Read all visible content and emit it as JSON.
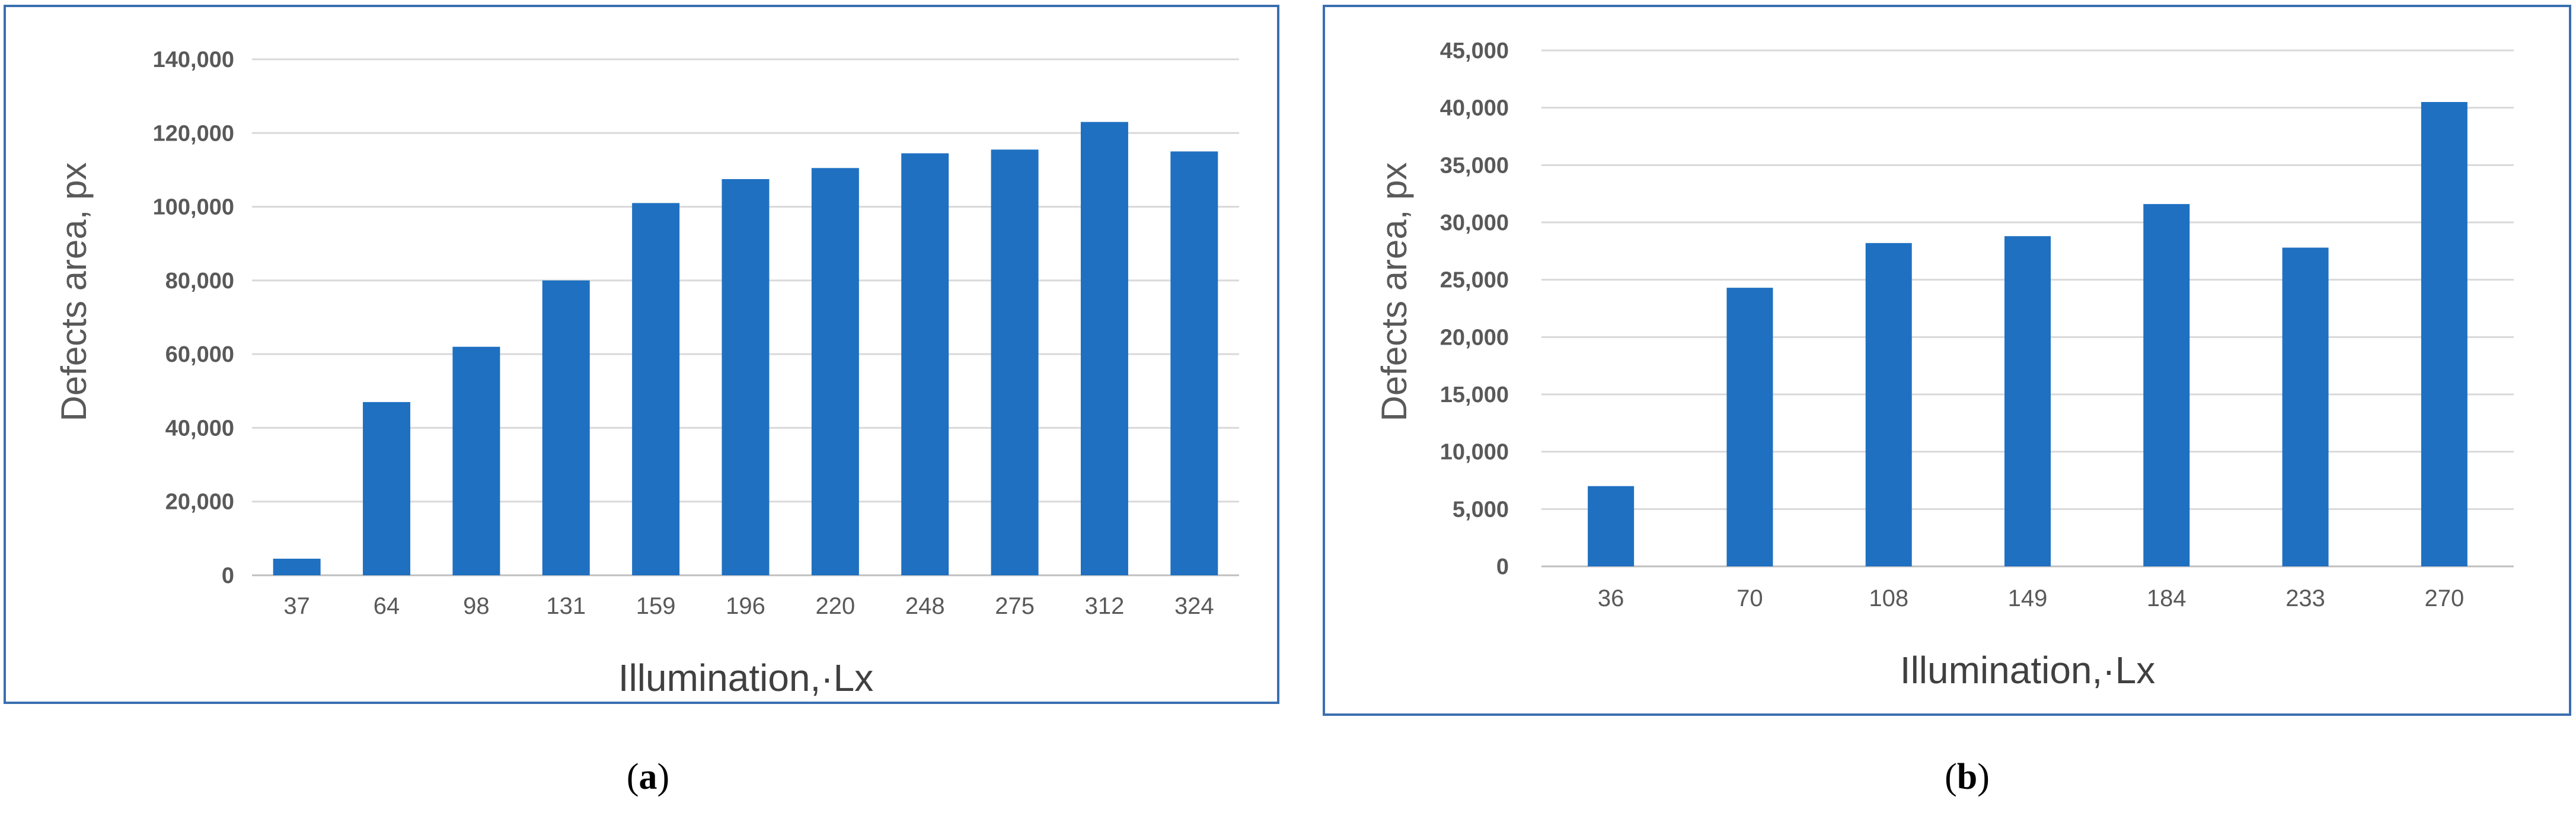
{
  "chart_data": [
    {
      "type": "bar",
      "panel_label": "a",
      "xlabel": "Illumination,·Lx",
      "ylabel": "Defects area, px",
      "categories": [
        "37",
        "64",
        "98",
        "131",
        "159",
        "196",
        "220",
        "248",
        "275",
        "312",
        "324"
      ],
      "values": [
        4500,
        47000,
        62000,
        80000,
        101000,
        107500,
        110500,
        114500,
        115500,
        123000,
        115000
      ],
      "ylim": [
        0,
        140000
      ],
      "yticks": [
        "0",
        "20,000",
        "40,000",
        "60,000",
        "80,000",
        "100,000",
        "120,000",
        "140,000"
      ],
      "grid": true,
      "bar_color": "#1f70c1"
    },
    {
      "type": "bar",
      "panel_label": "b",
      "xlabel": "Illumination,·Lx",
      "ylabel": "Defects area, px",
      "categories": [
        "36",
        "70",
        "108",
        "149",
        "184",
        "233",
        "270"
      ],
      "values": [
        7000,
        24300,
        28200,
        28800,
        31600,
        27800,
        40500
      ],
      "ylim": [
        0,
        45000
      ],
      "yticks": [
        "0",
        "5,000",
        "10,000",
        "15,000",
        "20,000",
        "25,000",
        "30,000",
        "35,000",
        "40,000",
        "45,000"
      ],
      "grid": true,
      "bar_color": "#1f70c1"
    }
  ]
}
